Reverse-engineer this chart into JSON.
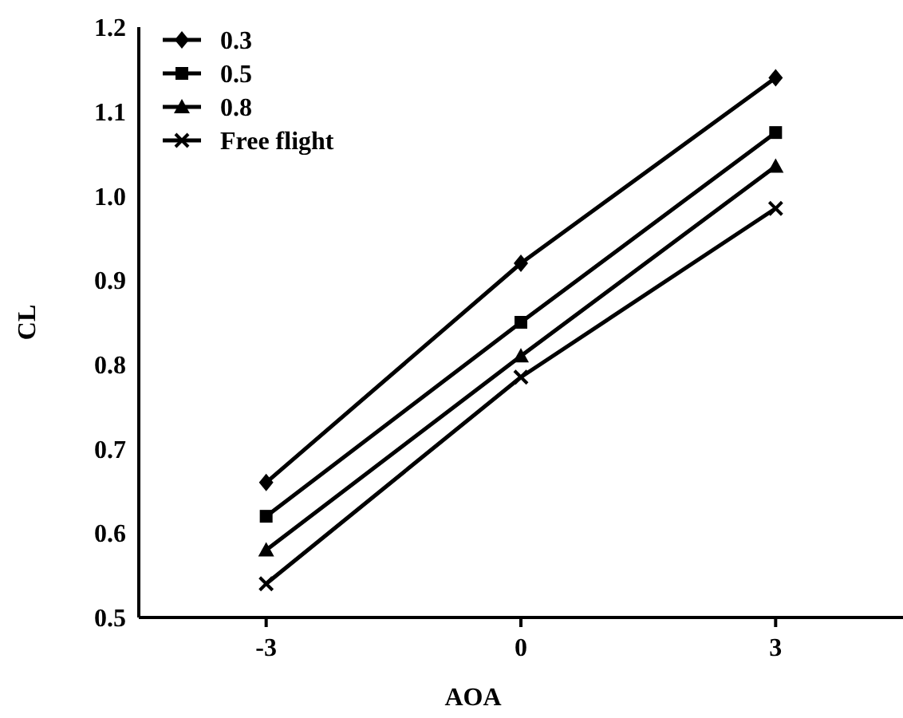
{
  "chart_data": {
    "type": "line",
    "xlabel": "AOA",
    "ylabel": "CL",
    "x": [
      -3,
      0,
      3
    ],
    "xlim": [
      -4.5,
      4.5
    ],
    "xticks": [
      -3,
      0,
      3
    ],
    "ylim": [
      0.5,
      1.2
    ],
    "yticks": [
      {
        "value": 0.5,
        "label": "0.5"
      },
      {
        "value": 0.6,
        "label": "0.6"
      },
      {
        "value": 0.7,
        "label": "0.7"
      },
      {
        "value": 0.8,
        "label": "0.8"
      },
      {
        "value": 0.9,
        "label": "0.9"
      },
      {
        "value": 1.0,
        "label": "1.0"
      },
      {
        "value": 1.1,
        "label": "1.1"
      },
      {
        "value": 1.2,
        "label": "1.2"
      }
    ],
    "grid": false,
    "legend": "top left",
    "line_style": "solid",
    "series": [
      {
        "name": "0.3",
        "color": "#000000",
        "marker": "diamond",
        "values": [
          0.66,
          0.92,
          1.14
        ]
      },
      {
        "name": "0.5",
        "color": "#000000",
        "marker": "square",
        "values": [
          0.62,
          0.85,
          1.075
        ]
      },
      {
        "name": "0.8",
        "color": "#000000",
        "marker": "triangle",
        "values": [
          0.58,
          0.81,
          1.035
        ]
      },
      {
        "name": "Free flight",
        "color": "#000000",
        "marker": "cross",
        "values": [
          0.54,
          0.785,
          0.985
        ]
      }
    ]
  }
}
